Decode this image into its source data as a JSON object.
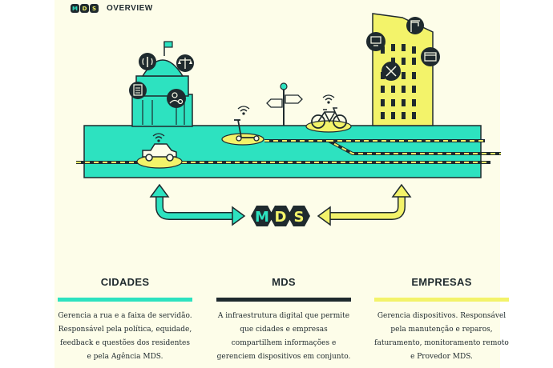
{
  "header": {
    "logo_text": "MDS",
    "title": "OVERVIEW"
  },
  "center_logo": {
    "letters": [
      "M",
      "D",
      "S"
    ]
  },
  "columns": [
    {
      "title": "CIDADES",
      "color": "#2de2c0",
      "text": "Gerencia a rua e a faixa de servidão. Responsável pela política, equidade, feedback e questões dos residentes e pela Agência MDS."
    },
    {
      "title": "MDS",
      "color": "#1f2a2e",
      "text": "A infraestrutura digital que permite que cidades e empresas compartilhem informações e gerenciem dispositivos em conjunto."
    },
    {
      "title": "EMPRESAS",
      "color": "#f3f36a",
      "text": "Gerencia dispositivos. Responsável pela manutenção e reparos, faturamento, monitoramento remoto e Provedor MDS."
    }
  ],
  "colors": {
    "teal": "#2de2c0",
    "yellow": "#f3f36a",
    "dark": "#1f2a2e",
    "background": "#fdfde9"
  },
  "icons": [
    "city-hall-icon",
    "antenna-icon",
    "scales-icon",
    "document-icon",
    "person-settings-icon",
    "car-icon",
    "scooter-icon",
    "bicycle-icon",
    "signpost-icon",
    "monitor-icon",
    "tools-icon",
    "card-icon",
    "crane-icon",
    "wifi-icon",
    "arrow-icon"
  ]
}
